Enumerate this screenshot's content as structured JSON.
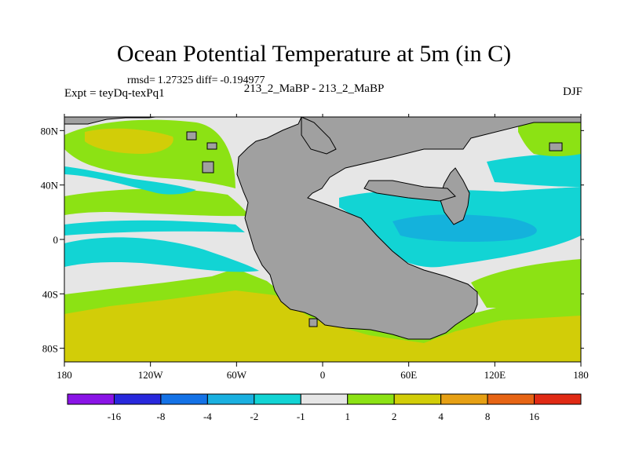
{
  "title": "Ocean Potential Temperature at 5m (in C)",
  "stats": {
    "rmsd_label": "rmsd=",
    "rmsd": "1.27325",
    "diff_label": "diff=",
    "diff": "-0.194977"
  },
  "expt": "Expt = teyDq-texPq1",
  "case": "213_2_MaBP - 213_2_MaBP",
  "season": "DJF",
  "chart_data": {
    "type": "heatmap",
    "title": "Ocean Potential Temperature at 5m (in C)",
    "variable": "temperature difference",
    "units": "C",
    "xlim": [
      -180,
      180
    ],
    "ylim": [
      -90,
      90
    ],
    "x_ticks": [
      -180,
      -120,
      -60,
      0,
      60,
      120,
      180
    ],
    "x_tick_labels": [
      "180",
      "120W",
      "60W",
      "0",
      "60E",
      "120E",
      "180"
    ],
    "y_ticks": [
      80,
      40,
      0,
      -40,
      -80
    ],
    "y_tick_labels": [
      "80N",
      "40N",
      "0",
      "40S",
      "80S"
    ],
    "colorbar": {
      "boundaries": [
        -16,
        -8,
        -4,
        -2,
        -1,
        1,
        2,
        4,
        8,
        16
      ],
      "labels": [
        "-16",
        "-8",
        "-4",
        "-2",
        "-1",
        "1",
        "2",
        "4",
        "8",
        "16"
      ],
      "colors": [
        "#8a14e6",
        "#2828dc",
        "#1472e6",
        "#1ab0e0",
        "#12d4d4",
        "#e6e6e6",
        "#8ce214",
        "#d2cd08",
        "#e6a014",
        "#e66414",
        "#e02a14"
      ]
    },
    "field_colors": {
      "land": "#a0a0a0",
      "neutral": "#e6e6e6",
      "cool": "#12d4d4",
      "cooler": "#14b2dc",
      "warm": "#8ce214",
      "warmer": "#d2cd08"
    }
  }
}
